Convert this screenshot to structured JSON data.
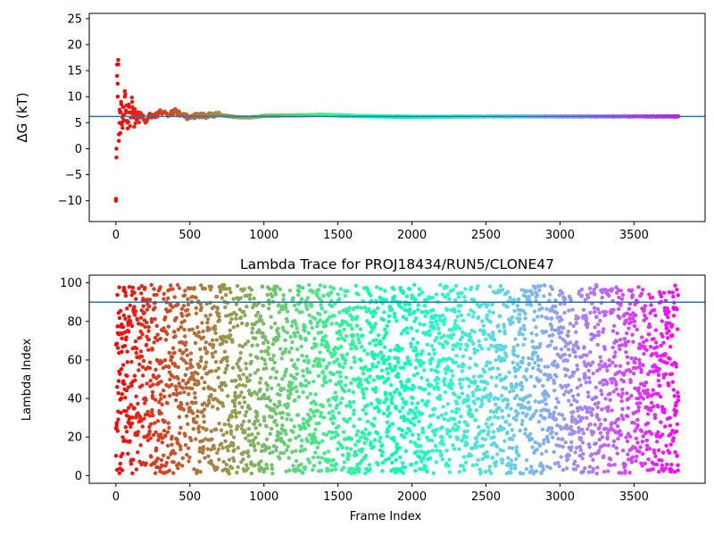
{
  "chart_data": [
    {
      "type": "scatter",
      "title": "",
      "xlabel": "",
      "ylabel": "ΔG (kT)",
      "xlim": [
        -180,
        3980
      ],
      "ylim": [
        -14,
        26
      ],
      "xticks": [
        0,
        500,
        1000,
        1500,
        2000,
        2500,
        3000,
        3500
      ],
      "yticks": [
        -10,
        -5,
        0,
        5,
        10,
        15,
        20,
        25
      ],
      "reference_line": {
        "y": 6.2,
        "color": "#1f77b4"
      },
      "colormap": "rainbow (red at frame 0 to violet at frame 3800)",
      "grid": false,
      "series": [
        {
          "description": "cumulative free energy estimate per frame, converging toward about 6.2 kT",
          "x": [
            0,
            4,
            8,
            12,
            16,
            20,
            25,
            30,
            35,
            40,
            45,
            50,
            55,
            60,
            70,
            80,
            90,
            100,
            110,
            120,
            130,
            150,
            170,
            200,
            230,
            260,
            300,
            350,
            400,
            450,
            500,
            550,
            600,
            700,
            800,
            900,
            1000,
            1200,
            1400,
            1600,
            1800,
            2000,
            2500,
            3000,
            3500,
            3800
          ],
          "y": [
            -10,
            0,
            14,
            10,
            16.2,
            1.5,
            7.5,
            3,
            9,
            5,
            4,
            8,
            6.5,
            10,
            7,
            5,
            8,
            6,
            9,
            6.5,
            7,
            6,
            6.8,
            5.2,
            6.5,
            6.2,
            7,
            6.5,
            7.2,
            6.5,
            5.8,
            6.5,
            6.3,
            6.5,
            6.1,
            6,
            6.3,
            6.4,
            6.5,
            6.3,
            6.2,
            6.1,
            6.2,
            6.2,
            6.2,
            6.2
          ]
        }
      ]
    },
    {
      "type": "scatter",
      "title": "Lambda Trace for PROJ18434/RUN5/CLONE47",
      "xlabel": "Frame Index",
      "ylabel": "Lambda Index",
      "xlim": [
        -180,
        3980
      ],
      "ylim": [
        -4,
        104
      ],
      "xticks": [
        0,
        500,
        1000,
        1500,
        2000,
        2500,
        3000,
        3500
      ],
      "yticks": [
        0,
        20,
        40,
        60,
        80,
        100
      ],
      "reference_line": {
        "y": 90,
        "color": "#1f77b4"
      },
      "colormap": "rainbow (red at frame 0 to violet at frame 3800)",
      "grid": false,
      "series": [
        {
          "description": "lambda index visited at each frame, spread roughly uniformly between 1 and 99 across frames 0 to 3800",
          "x_range": [
            0,
            3800
          ],
          "y_range": [
            1,
            99
          ],
          "approx_point_count": 3800
        }
      ]
    }
  ]
}
